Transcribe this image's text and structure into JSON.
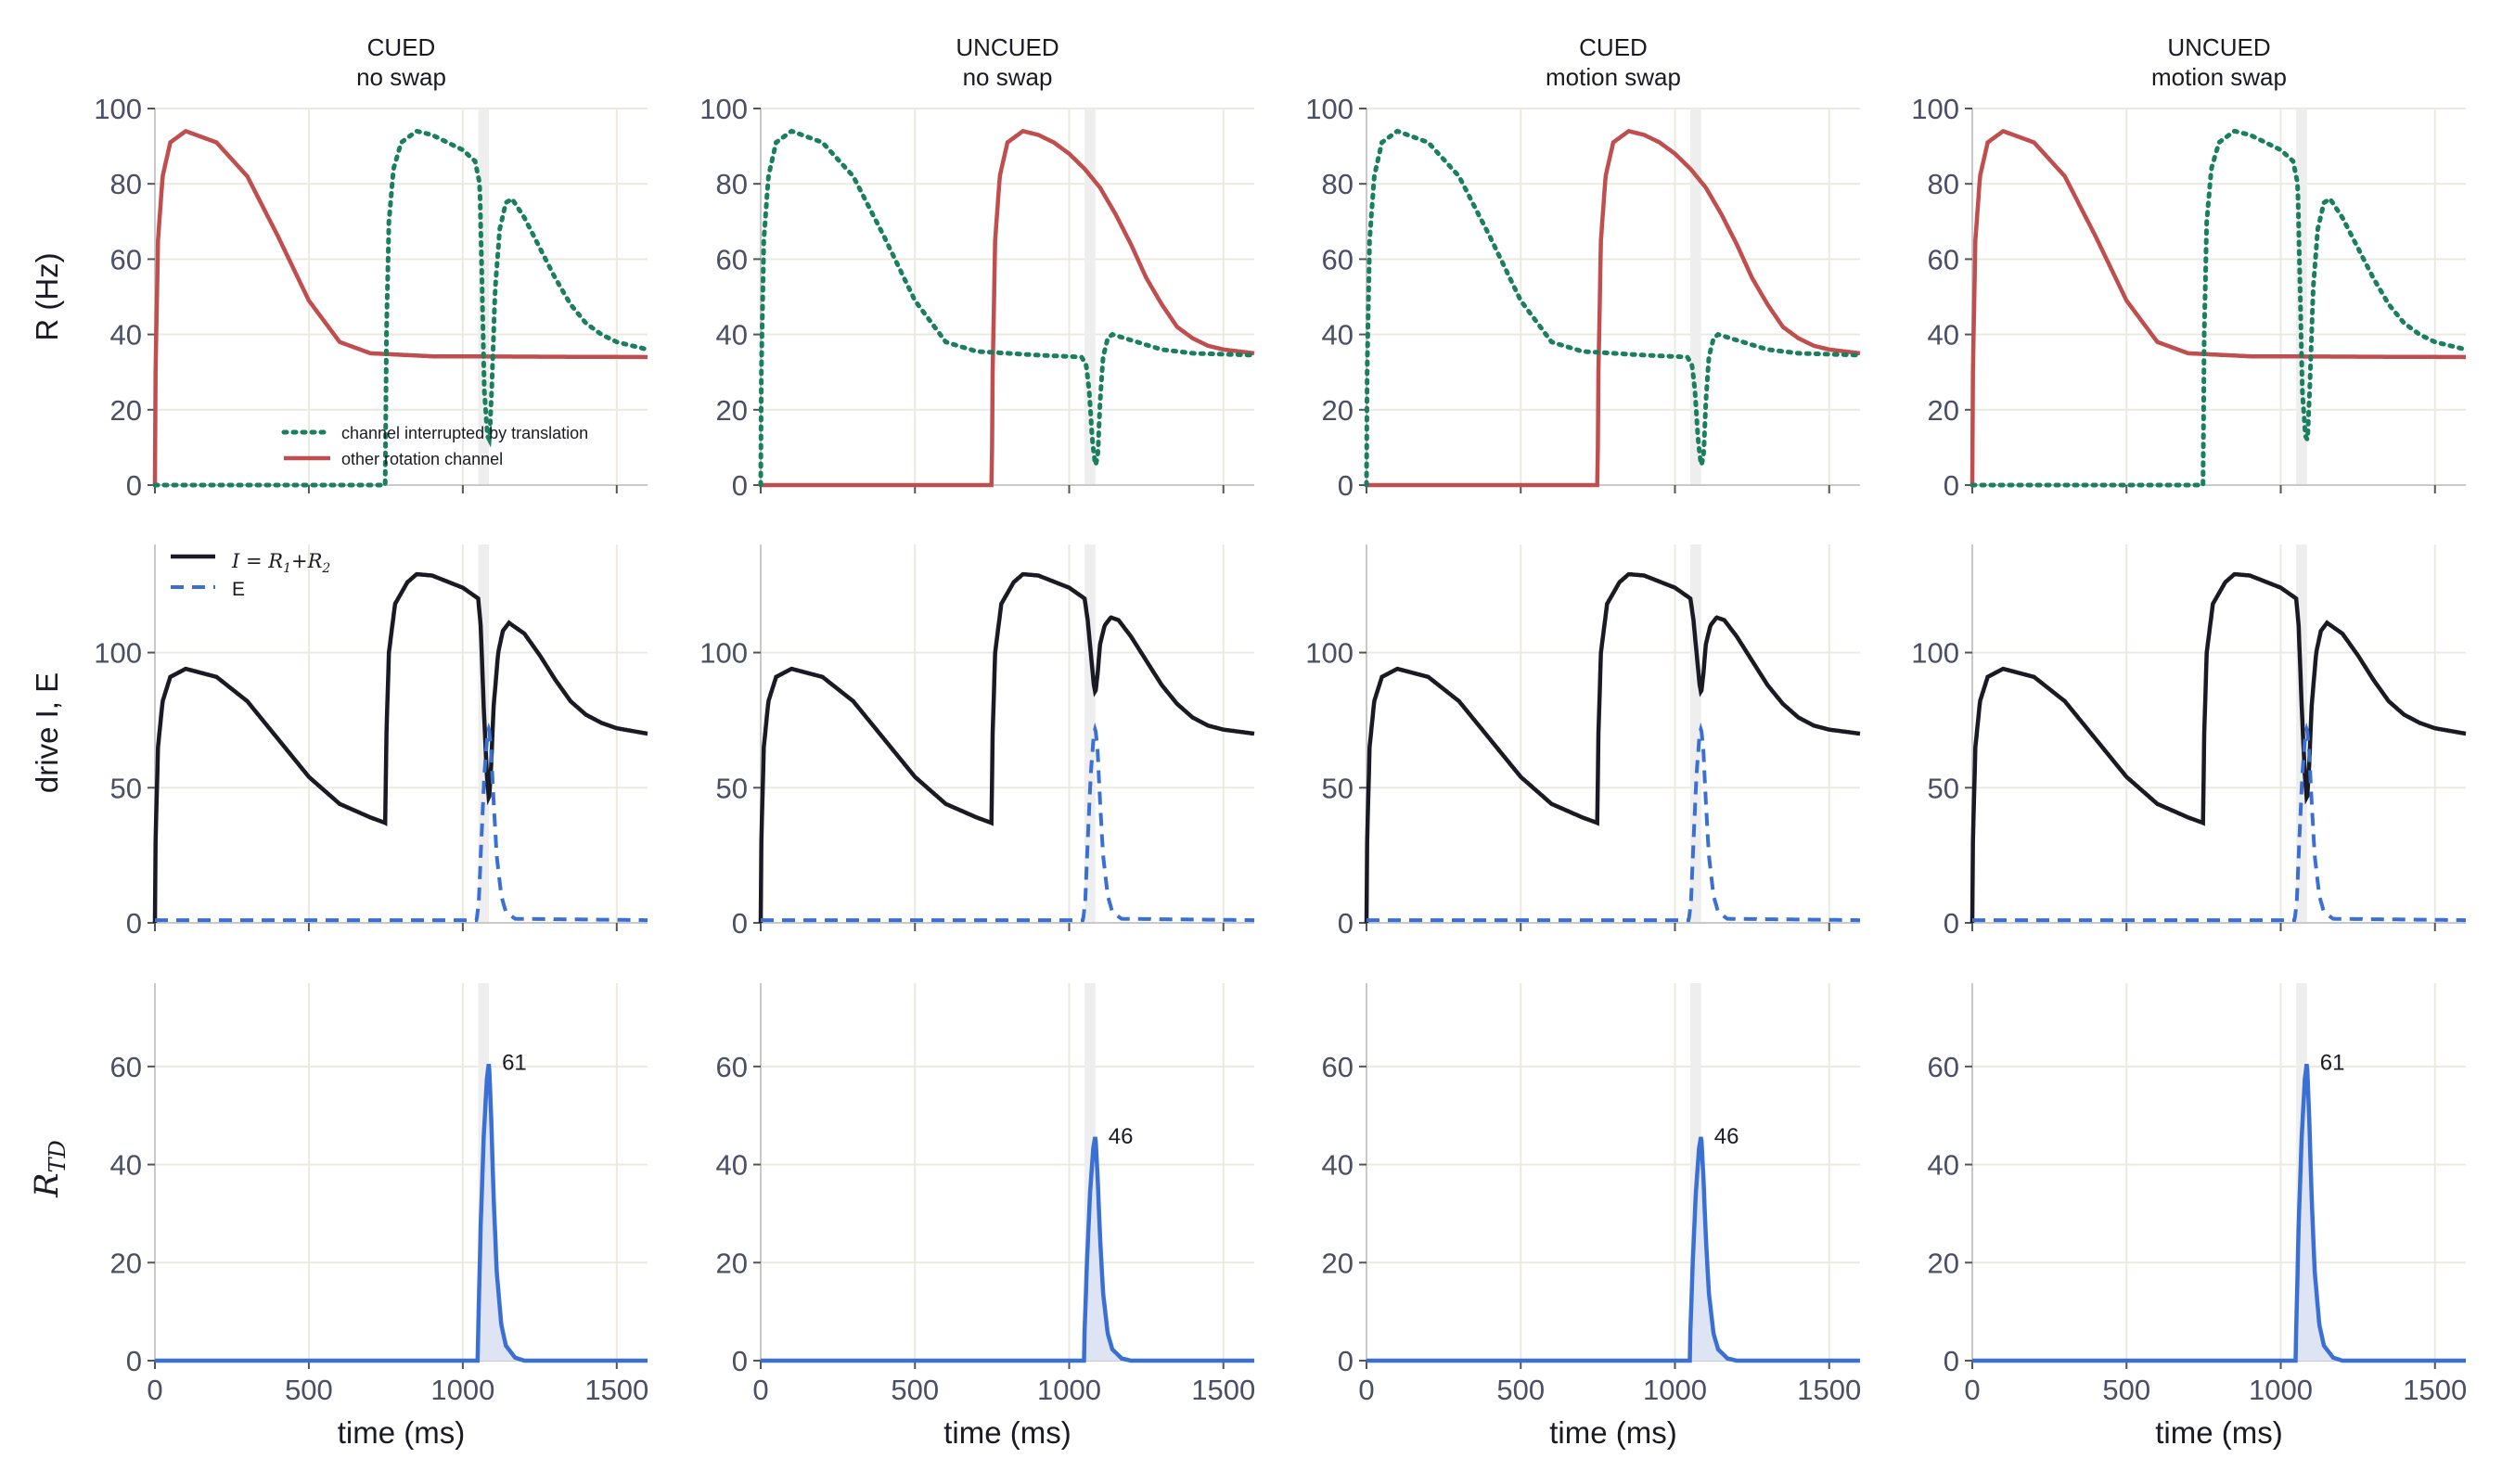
{
  "figure": {
    "column_titles": [
      [
        "CUED",
        "no swap"
      ],
      [
        "UNCUED",
        "no swap"
      ],
      [
        "CUED",
        "motion swap"
      ],
      [
        "UNCUED",
        "motion swap"
      ]
    ],
    "row_ylabels": [
      "R  (Hz)",
      "drive  I, E",
      "R_TD"
    ],
    "xlabel": "time  (ms)",
    "xticks": [
      0,
      500,
      1000,
      1500
    ],
    "xlim": [
      0,
      1600
    ],
    "yticks": [
      [
        0,
        20,
        40,
        60,
        80,
        100
      ],
      [
        0,
        50,
        100
      ],
      [
        0,
        20,
        40,
        60
      ]
    ],
    "ylims": [
      [
        0,
        100
      ],
      [
        0,
        140
      ],
      [
        0,
        77
      ]
    ],
    "shade_band_ms": [
      1050,
      1085
    ],
    "colors": {
      "red": "#c04e4e",
      "green": "#1a7f5f",
      "black": "#1a1a24",
      "blue": "#3a6fd4",
      "fill": "#dfe4f5",
      "grid": "#ece9e1",
      "band": "#eeeeee",
      "axis": "#c9c9c9",
      "tick_text": "#4a4e66"
    }
  },
  "legends": {
    "row0": [
      "channel interrupted by translation",
      "other rotation channel"
    ],
    "row1": [
      "I = R1+R2",
      "E"
    ]
  },
  "peak_labels": [
    "61",
    "46",
    "46",
    "61"
  ],
  "chart_data": [
    {
      "type": "line",
      "panel": "row 1 (R) — all columns",
      "ylabel": "R  (Hz)",
      "ylim": [
        0,
        100
      ],
      "series": [
        {
          "name": "channel interrupted by translation",
          "style": "dotted green (cols 1,4 start at 750 ms; cols 2,3 start at 0 ms)",
          "peak": 94,
          "dip_at_1085": [
            10,
            5,
            5,
            12
          ],
          "rebound_peak": [
            76,
            40,
            40,
            76
          ],
          "tail": [
            36,
            34,
            34,
            36
          ]
        },
        {
          "name": "other rotation channel",
          "style": "solid red (cols 1,4 start at 0 ms; cols 2,3 start at 750 ms)",
          "peak": 94,
          "tail": [
            34,
            35,
            35,
            34
          ]
        }
      ]
    },
    {
      "type": "line",
      "panel": "row 2 (drive) — all columns",
      "ylabel": "drive  I, E",
      "series": [
        {
          "name": "I = R1+R2",
          "peak": 130,
          "min_at_750": 36,
          "dip_at_1085": [
            45,
            85,
            85,
            45
          ],
          "rebound_peak": [
            111,
            113,
            113,
            111
          ],
          "tail": 70
        },
        {
          "name": "E",
          "peak": 72,
          "peak_time_ms": 1085
        }
      ]
    },
    {
      "type": "area",
      "panel": "row 3 (R_TD)",
      "ylabel": "R_TD",
      "ylim": [
        0,
        77
      ],
      "peak_time_ms": 1085,
      "peaks": [
        61,
        46,
        46,
        61
      ]
    }
  ]
}
